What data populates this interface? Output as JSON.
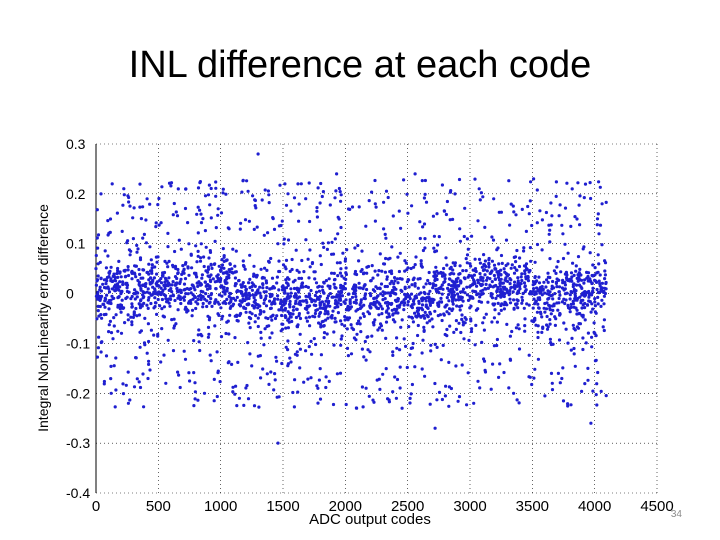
{
  "slide": {
    "title": "INL difference at each code",
    "number": "34"
  },
  "chart_data": {
    "type": "scatter",
    "title": "",
    "xlabel": "ADC output codes",
    "ylabel": "Integral NonLinearity error difference",
    "xlim": [
      0,
      4500
    ],
    "ylim": [
      -0.4,
      0.3
    ],
    "xticks": [
      0,
      500,
      1000,
      1500,
      2000,
      2500,
      3000,
      3500,
      4000,
      4500
    ],
    "yticks": [
      -0.4,
      -0.3,
      -0.2,
      -0.1,
      0,
      0.1,
      0.2,
      0.3
    ],
    "ytick_labels": [
      "-0.4",
      "-0.3",
      "-0.2",
      "-0.1",
      "0",
      "0.1",
      "0.2",
      "0.3"
    ],
    "grid": true,
    "marker_color": "#1f1fd0",
    "x_range_of_points": [
      0,
      4095
    ],
    "series": [
      {
        "x": [
          0,
          40,
          80,
          120,
          160,
          200,
          240,
          280,
          320,
          360,
          400,
          440,
          480,
          520,
          560,
          600,
          640,
          680,
          720,
          760,
          800,
          840,
          880,
          920,
          960,
          1000,
          1040,
          1080,
          1120,
          1160,
          1200,
          1240,
          1280,
          1320,
          1360,
          1400,
          1440,
          1480,
          1520,
          1560,
          1600,
          1640,
          1680,
          1720,
          1760,
          1800,
          1840,
          1880,
          1920,
          1960,
          2000,
          2040,
          2080,
          2120,
          2160,
          2200,
          2240,
          2280,
          2320,
          2360,
          2400,
          2440,
          2480,
          2520,
          2560,
          2600,
          2640,
          2680,
          2720,
          2760,
          2800,
          2840,
          2880,
          2920,
          2960,
          3000,
          3040,
          3080,
          3120,
          3160,
          3200,
          3240,
          3280,
          3320,
          3360,
          3400,
          3440,
          3480,
          3520,
          3560,
          3600,
          3640,
          3680,
          3720,
          3760,
          3800,
          3840,
          3880,
          3920,
          3960,
          4000,
          4040,
          4080,
          40,
          130,
          260,
          410,
          560,
          720,
          870,
          980,
          1150,
          1300,
          1460,
          1620,
          1780,
          1930,
          2090,
          2240,
          2410,
          2560,
          2720,
          2880,
          3030,
          3190,
          3350,
          3510,
          3660,
          3820,
          3970,
          4060
        ],
        "y": [
          0.05,
          0.03,
          0.02,
          -0.02,
          0.01,
          0.0,
          0.02,
          -0.01,
          -0.03,
          0.01,
          0.02,
          -0.02,
          0.0,
          0.03,
          -0.01,
          0.01,
          0.02,
          -0.02,
          0.0,
          0.01,
          -0.03,
          0.02,
          0.0,
          -0.01,
          0.01,
          0.03,
          -0.02,
          0.0,
          0.02,
          -0.04,
          -0.03,
          -0.05,
          -0.02,
          -0.04,
          -0.01,
          -0.03,
          -0.05,
          -0.02,
          -0.03,
          -0.04,
          -0.02,
          -0.05,
          -0.03,
          -0.01,
          -0.04,
          -0.02,
          -0.03,
          0.0,
          -0.02,
          -0.01,
          0.01,
          -0.02,
          0.0,
          -0.03,
          -0.01,
          0.0,
          -0.02,
          0.01,
          -0.01,
          0.02,
          0.0,
          0.03,
          0.01,
          -0.01,
          0.02,
          0.03,
          0.0,
          0.02,
          0.04,
          0.01,
          0.03,
          0.05,
          0.02,
          0.04,
          0.03,
          0.06,
          0.02,
          0.04,
          0.01,
          0.03,
          0.05,
          0.02,
          0.0,
          0.03,
          0.01,
          0.02,
          0.04,
          0.0,
          0.02,
          0.01,
          -0.02,
          -0.03,
          0.0,
          -0.04,
          -0.02,
          -0.03,
          -0.01,
          -0.04,
          -0.02,
          0.0,
          -0.01,
          0.02,
          0.03,
          0.2,
          0.22,
          -0.22,
          0.19,
          -0.18,
          0.21,
          -0.2,
          0.17,
          -0.21,
          0.28,
          -0.3,
          0.22,
          -0.19,
          0.24,
          -0.23,
          0.18,
          -0.21,
          0.24,
          -0.27,
          0.2,
          -0.22,
          0.19,
          -0.2,
          0.23,
          -0.18,
          0.21,
          -0.26,
          0.18
        ]
      }
    ]
  }
}
